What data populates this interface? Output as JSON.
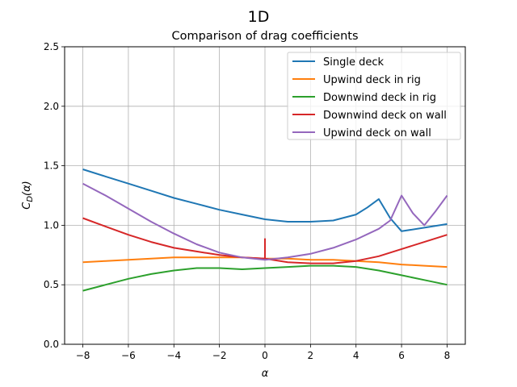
{
  "chart_data": {
    "type": "line",
    "suptitle": "1D",
    "title": "Comparison of drag coefficients",
    "xlabel": "α",
    "ylabel": "C_D(α)",
    "xlim": [
      -8.8,
      8.8
    ],
    "ylim": [
      0.0,
      2.5
    ],
    "xticks": [
      -8,
      -6,
      -4,
      -2,
      0,
      2,
      4,
      6,
      8
    ],
    "xtick_labels": [
      "−8",
      "−6",
      "−4",
      "−2",
      "0",
      "2",
      "4",
      "6",
      "8"
    ],
    "yticks": [
      0.0,
      0.5,
      1.0,
      1.5,
      2.0,
      2.5
    ],
    "ytick_labels": [
      "0.0",
      "0.5",
      "1.0",
      "1.5",
      "2.0",
      "2.5"
    ],
    "grid": true,
    "legend_position": "top-right",
    "series": [
      {
        "name": "Single deck",
        "color": "#1f77b4",
        "x": [
          -8,
          -7,
          -6,
          -5,
          -4,
          -3,
          -2,
          -1,
          0,
          1,
          2,
          3,
          4,
          4.5,
          5,
          5.5,
          6,
          7,
          8
        ],
        "y": [
          1.47,
          1.41,
          1.35,
          1.29,
          1.23,
          1.18,
          1.13,
          1.09,
          1.05,
          1.03,
          1.03,
          1.04,
          1.09,
          1.15,
          1.22,
          1.06,
          0.95,
          0.98,
          1.01
        ]
      },
      {
        "name": "Upwind deck in rig",
        "color": "#ff7f0e",
        "x": [
          -8,
          -7,
          -6,
          -5,
          -4,
          -3,
          -2,
          -1,
          0,
          1,
          2,
          3,
          4,
          5,
          6,
          7,
          8
        ],
        "y": [
          0.69,
          0.7,
          0.71,
          0.72,
          0.73,
          0.73,
          0.73,
          0.73,
          0.72,
          0.72,
          0.71,
          0.71,
          0.7,
          0.69,
          0.67,
          0.66,
          0.65
        ]
      },
      {
        "name": "Downwind deck in rig",
        "color": "#2ca02c",
        "x": [
          -8,
          -7,
          -6,
          -5,
          -4,
          -3,
          -2,
          -1,
          0,
          1,
          2,
          3,
          4,
          5,
          6,
          7,
          8
        ],
        "y": [
          0.45,
          0.5,
          0.55,
          0.59,
          0.62,
          0.64,
          0.64,
          0.63,
          0.64,
          0.65,
          0.66,
          0.66,
          0.65,
          0.62,
          0.58,
          0.54,
          0.5
        ]
      },
      {
        "name": "Downwind deck on wall",
        "color": "#d62728",
        "x": [
          -8,
          -7,
          -6,
          -5,
          -4,
          -3,
          -2,
          -1,
          0,
          1,
          2,
          3,
          4,
          5,
          6,
          7,
          8
        ],
        "y": [
          1.06,
          0.99,
          0.92,
          0.86,
          0.81,
          0.78,
          0.75,
          0.73,
          0.72,
          0.69,
          0.68,
          0.68,
          0.7,
          0.74,
          0.8,
          0.86,
          0.92
        ]
      },
      {
        "name": "Upwind deck on wall",
        "color": "#9467bd",
        "x": [
          -8,
          -7,
          -6,
          -5,
          -4,
          -3,
          -2,
          -1,
          0,
          1,
          2,
          3,
          4,
          5,
          5.5,
          6,
          6.5,
          7,
          7.5,
          8
        ],
        "y": [
          1.35,
          1.25,
          1.14,
          1.03,
          0.93,
          0.84,
          0.77,
          0.73,
          0.71,
          0.73,
          0.76,
          0.81,
          0.88,
          0.97,
          1.04,
          1.25,
          1.1,
          1.0,
          1.12,
          1.25
        ]
      }
    ],
    "spike": {
      "series": "Downwind deck on wall",
      "x": 0,
      "y_from": 0.72,
      "y_to": 0.89
    }
  }
}
